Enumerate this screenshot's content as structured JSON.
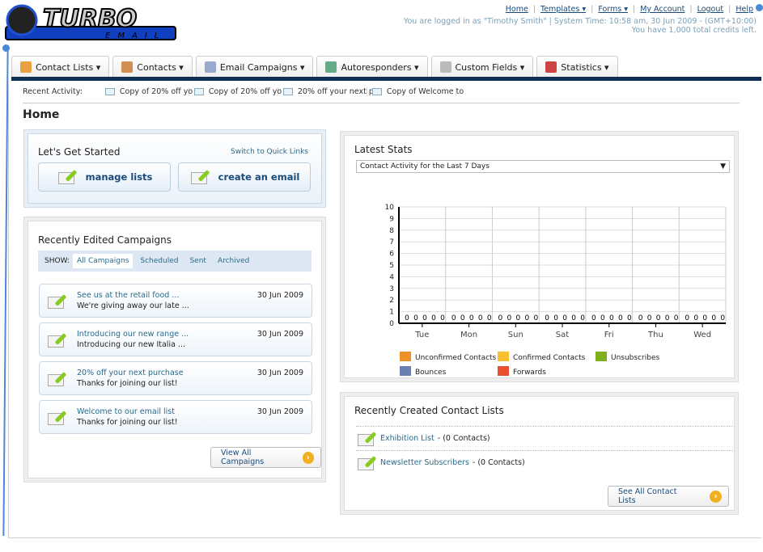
{
  "logo": {
    "text": "TURBO",
    "subtext": "EMAIL"
  },
  "toplinks": [
    "Home",
    "Templates ▾",
    "Forms ▾",
    "My Account",
    "Logout",
    "Help"
  ],
  "login_info": "You are logged in as \"Timothy Smith\" | System Time: 10:58 am, 30 Jun 2009 - (GMT+10:00)",
  "credits": "You have 1,000 total credits left.",
  "nav": [
    {
      "label": "Contact Lists ▾",
      "icon": "contact-lists-icon",
      "color": "#e8a040"
    },
    {
      "label": "Contacts ▾",
      "icon": "contacts-icon",
      "color": "#d09050"
    },
    {
      "label": "Email Campaigns ▾",
      "icon": "envelope-icon",
      "color": "#9ac"
    },
    {
      "label": "Autoresponders ▾",
      "icon": "autoresponder-icon",
      "color": "#6a8"
    },
    {
      "label": "Custom Fields ▾",
      "icon": "custom-fields-icon",
      "color": "#bbb"
    },
    {
      "label": "Statistics ▾",
      "icon": "statistics-icon",
      "color": "#c44"
    }
  ],
  "recent": {
    "label": "Recent Activity:",
    "items": [
      "Copy of 20% off yo",
      "Copy of 20% off yo",
      "20% off your next p",
      "Copy of Welcome to"
    ]
  },
  "page_title": "Home",
  "get_started": {
    "title": "Let's Get Started",
    "switch": "Switch to Quick Links",
    "manage": "manage lists",
    "create": "create an email"
  },
  "campaigns": {
    "title": "Recently Edited Campaigns",
    "show": "SHOW:",
    "filters": [
      "All Campaigns",
      "Scheduled",
      "Sent",
      "Archived"
    ],
    "items": [
      {
        "title": "See us at the retail food ...",
        "sub": "We're giving away our late ...",
        "date": "30 Jun 2009"
      },
      {
        "title": "Introducing our new range ...",
        "sub": "Introducing our new Italia ...",
        "date": "30 Jun 2009"
      },
      {
        "title": "20% off your next purchase",
        "sub": "Thanks for joining our list!",
        "date": "30 Jun 2009"
      },
      {
        "title": "Welcome to our email list",
        "sub": "Thanks for joining our list!",
        "date": "30 Jun 2009"
      }
    ],
    "view_all": "View All Campaigns"
  },
  "stats": {
    "title": "Latest Stats",
    "select": "Contact Activity for the Last 7 Days"
  },
  "chart_data": {
    "type": "bar",
    "categories": [
      "Tue",
      "Mon",
      "Sun",
      "Sat",
      "Fri",
      "Thu",
      "Wed"
    ],
    "ylim": [
      0,
      10
    ],
    "yticks": [
      0,
      1,
      2,
      3,
      4,
      5,
      6,
      7,
      8,
      9,
      10
    ],
    "grid": true,
    "legend": "bottom",
    "series": [
      {
        "name": "Unconfirmed Contacts",
        "color": "#f0902a",
        "values": [
          0,
          0,
          0,
          0,
          0,
          0,
          0
        ]
      },
      {
        "name": "Confirmed Contacts",
        "color": "#f8c030",
        "values": [
          0,
          0,
          0,
          0,
          0,
          0,
          0
        ]
      },
      {
        "name": "Unsubscribes",
        "color": "#80b020",
        "values": [
          0,
          0,
          0,
          0,
          0,
          0,
          0
        ]
      },
      {
        "name": "Bounces",
        "color": "#6a80b0",
        "values": [
          0,
          0,
          0,
          0,
          0,
          0,
          0
        ]
      },
      {
        "name": "Forwards",
        "color": "#e85030",
        "values": [
          0,
          0,
          0,
          0,
          0,
          0,
          0
        ]
      }
    ]
  },
  "lists": {
    "title": "Recently Created Contact Lists",
    "items": [
      {
        "name": "Exhibition List",
        "count": " - (0 Contacts)"
      },
      {
        "name": "Newsletter Subscribers",
        "count": " - (0 Contacts)"
      }
    ],
    "see_all": "See All Contact Lists"
  }
}
